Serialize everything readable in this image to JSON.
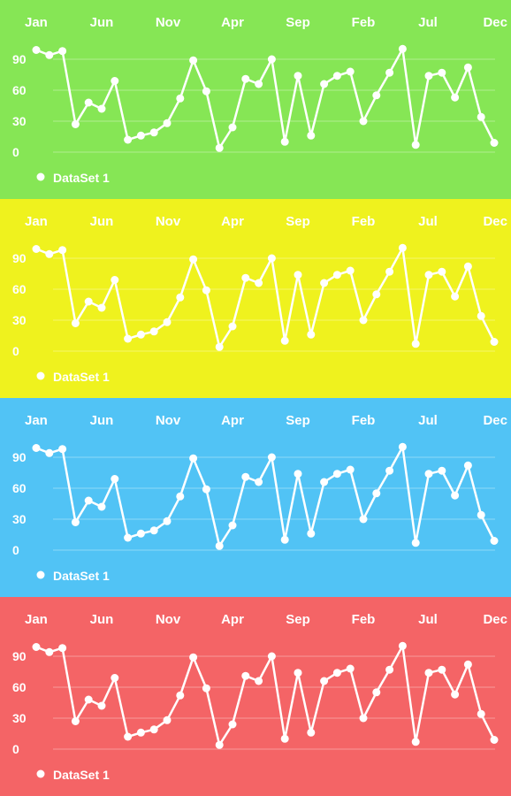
{
  "chart_data": [
    {
      "type": "line",
      "background": "#86e655",
      "x_tick_labels": [
        "Jan",
        "Jun",
        "Nov",
        "Apr",
        "Sep",
        "Feb",
        "Jul",
        "Dec"
      ],
      "y_ticks": [
        0,
        30,
        60,
        90
      ],
      "ylim": [
        0,
        100
      ],
      "grid": true,
      "legend_position": "bottom-left",
      "series": [
        {
          "name": "DataSet 1",
          "color": "#ffffff",
          "values": [
            99,
            94,
            98,
            27,
            48,
            42,
            69,
            12,
            16,
            19,
            28,
            52,
            89,
            59,
            4,
            24,
            71,
            66,
            90,
            10,
            74,
            16,
            66,
            74,
            78,
            30,
            55,
            77,
            100,
            7,
            74,
            77,
            53,
            82,
            34,
            9
          ]
        }
      ]
    },
    {
      "type": "line",
      "background": "#eff21e",
      "x_tick_labels": [
        "Jan",
        "Jun",
        "Nov",
        "Apr",
        "Sep",
        "Feb",
        "Jul",
        "Dec"
      ],
      "y_ticks": [
        0,
        30,
        60,
        90
      ],
      "ylim": [
        0,
        100
      ],
      "grid": true,
      "legend_position": "bottom-left",
      "series": [
        {
          "name": "DataSet 1",
          "color": "#ffffff",
          "values": [
            99,
            94,
            98,
            27,
            48,
            42,
            69,
            12,
            16,
            19,
            28,
            52,
            89,
            59,
            4,
            24,
            71,
            66,
            90,
            10,
            74,
            16,
            66,
            74,
            78,
            30,
            55,
            77,
            100,
            7,
            74,
            77,
            53,
            82,
            34,
            9
          ]
        }
      ]
    },
    {
      "type": "line",
      "background": "#51c3f5",
      "x_tick_labels": [
        "Jan",
        "Jun",
        "Nov",
        "Apr",
        "Sep",
        "Feb",
        "Jul",
        "Dec"
      ],
      "y_ticks": [
        0,
        30,
        60,
        90
      ],
      "ylim": [
        0,
        100
      ],
      "grid": true,
      "legend_position": "bottom-left",
      "series": [
        {
          "name": "DataSet 1",
          "color": "#ffffff",
          "values": [
            99,
            94,
            98,
            27,
            48,
            42,
            69,
            12,
            16,
            19,
            28,
            52,
            89,
            59,
            4,
            24,
            71,
            66,
            90,
            10,
            74,
            16,
            66,
            74,
            78,
            30,
            55,
            77,
            100,
            7,
            74,
            77,
            53,
            82,
            34,
            9
          ]
        }
      ]
    },
    {
      "type": "line",
      "background": "#f46466",
      "x_tick_labels": [
        "Jan",
        "Jun",
        "Nov",
        "Apr",
        "Sep",
        "Feb",
        "Jul",
        "Dec"
      ],
      "y_ticks": [
        0,
        30,
        60,
        90
      ],
      "ylim": [
        0,
        100
      ],
      "grid": true,
      "legend_position": "bottom-left",
      "series": [
        {
          "name": "DataSet 1",
          "color": "#ffffff",
          "values": [
            99,
            94,
            98,
            27,
            48,
            42,
            69,
            12,
            16,
            19,
            28,
            52,
            89,
            59,
            4,
            24,
            71,
            66,
            90,
            10,
            74,
            16,
            66,
            74,
            78,
            30,
            55,
            77,
            100,
            7,
            74,
            77,
            53,
            82,
            34,
            9
          ]
        }
      ]
    }
  ]
}
